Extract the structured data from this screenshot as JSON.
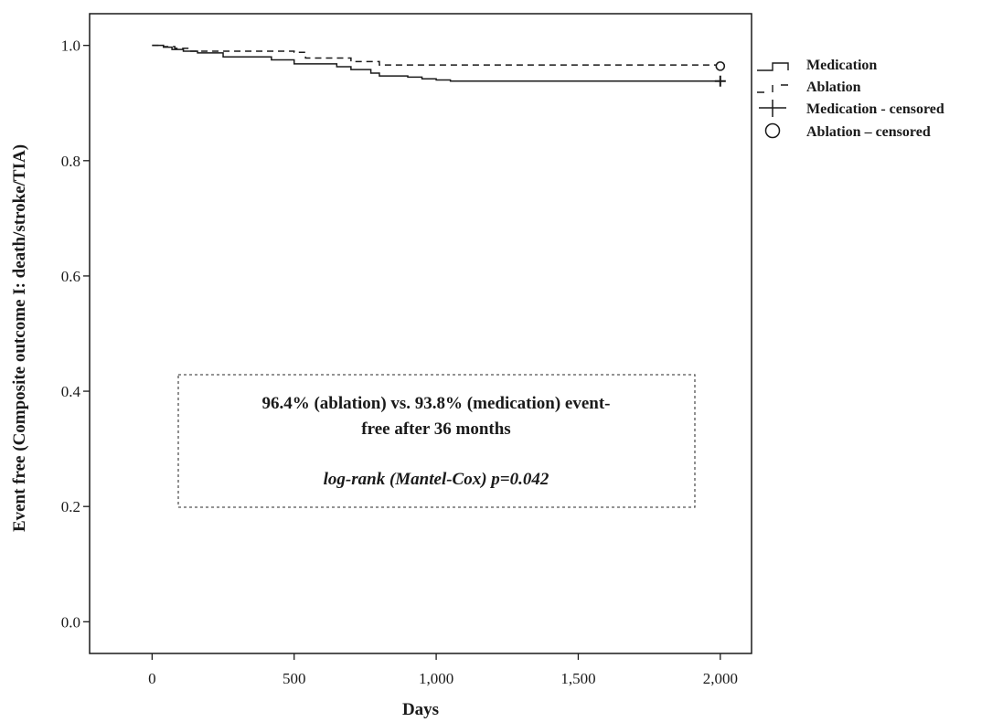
{
  "chart_data": {
    "type": "line",
    "subtype": "kaplan-meier",
    "xlabel": "Days",
    "ylabel": "Event free (Composite outcome I: death/stroke/TIA)",
    "xlim": [
      -220,
      2110
    ],
    "ylim": [
      -0.055,
      1.055
    ],
    "x_ticks": [
      0,
      500,
      1000,
      1500,
      2000
    ],
    "x_tick_labels": [
      "0",
      "500",
      "1,000",
      "1,500",
      "2,000"
    ],
    "y_ticks": [
      0.0,
      0.2,
      0.4,
      0.6,
      0.8,
      1.0
    ],
    "y_tick_labels": [
      "0.0",
      "0.2",
      "0.4",
      "0.6",
      "0.8",
      "1.0"
    ],
    "grid": false,
    "legend_position": "right-top",
    "legend": [
      "Medication",
      "Ablation",
      "Medication - censored",
      "Ablation – censored"
    ],
    "series": [
      {
        "name": "Medication",
        "style": "solid",
        "color": "#1a1a1a",
        "x": [
          0,
          40,
          70,
          110,
          160,
          250,
          420,
          500,
          650,
          700,
          770,
          800,
          900,
          950,
          1000,
          1050,
          2000
        ],
        "y": [
          1.0,
          0.997,
          0.993,
          0.99,
          0.987,
          0.98,
          0.975,
          0.968,
          0.963,
          0.958,
          0.952,
          0.947,
          0.945,
          0.942,
          0.94,
          0.938,
          0.938
        ]
      },
      {
        "name": "Ablation",
        "style": "dashed",
        "color": "#1a1a1a",
        "x": [
          0,
          40,
          80,
          130,
          500,
          540,
          700,
          800,
          2000
        ],
        "y": [
          1.0,
          0.998,
          0.995,
          0.99,
          0.988,
          0.978,
          0.972,
          0.966,
          0.964
        ]
      }
    ],
    "censored": [
      {
        "name": "Medication - censored",
        "marker": "plus",
        "x": 2000,
        "y": 0.938
      },
      {
        "name": "Ablation – censored",
        "marker": "circle",
        "x": 2000,
        "y": 0.964
      }
    ],
    "annotation": {
      "line1": "96.4% (ablation) vs. 93.8% (medication) event-",
      "line2": "free after 36 months",
      "line3": "log-rank (Mantel-Cox) p=0.042"
    }
  }
}
